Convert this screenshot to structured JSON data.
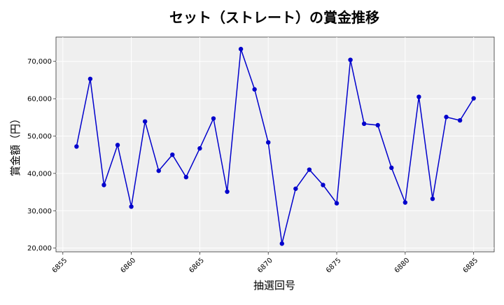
{
  "chart_data": {
    "type": "line",
    "title": "セット（ストレート）の賞金推移",
    "xlabel": "抽選回号",
    "ylabel": "賞金額（円）",
    "xlim": [
      6854.5,
      6886.5
    ],
    "ylim": [
      19000,
      76500
    ],
    "x_ticks": [
      6855,
      6860,
      6865,
      6870,
      6875,
      6880,
      6885
    ],
    "y_ticks": [
      20000,
      30000,
      40000,
      50000,
      60000,
      70000
    ],
    "y_tick_labels": [
      "20,000",
      "30,000",
      "40,000",
      "50,000",
      "60,000",
      "70,000"
    ],
    "grid": true,
    "series": [
      {
        "color": "#0000cc",
        "x": [
          6856,
          6857,
          6858,
          6859,
          6860,
          6861,
          6862,
          6863,
          6864,
          6865,
          6866,
          6867,
          6868,
          6869,
          6870,
          6871,
          6872,
          6873,
          6874,
          6875,
          6876,
          6877,
          6878,
          6879,
          6880,
          6881,
          6882,
          6883,
          6884,
          6885
        ],
        "values": [
          47200,
          65300,
          36900,
          47600,
          31100,
          53900,
          40700,
          45000,
          39000,
          46700,
          54700,
          35100,
          73300,
          62500,
          48300,
          21200,
          35900,
          41000,
          36900,
          32000,
          70400,
          53300,
          52900,
          41500,
          32200,
          60500,
          33200,
          55100,
          54200,
          60100
        ]
      }
    ]
  }
}
